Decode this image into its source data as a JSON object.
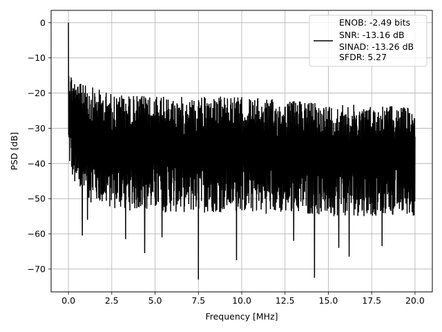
{
  "chart_data": {
    "type": "line",
    "title": "",
    "xlabel": "Frequency [MHz]",
    "ylabel": "PSD [dB]",
    "xlim": [
      -1.0,
      21.0
    ],
    "ylim": [
      -76.5,
      3.5
    ],
    "xticks": [
      0.0,
      2.5,
      5.0,
      7.5,
      10.0,
      12.5,
      15.0,
      17.5,
      20.0
    ],
    "xtick_labels": [
      "0.0",
      "2.5",
      "5.0",
      "7.5",
      "10.0",
      "12.5",
      "15.0",
      "17.5",
      "20.0"
    ],
    "yticks": [
      0,
      -10,
      -20,
      -30,
      -40,
      -50,
      -60,
      -70
    ],
    "ytick_labels": [
      "0",
      "−10",
      "−20",
      "−30",
      "−40",
      "−50",
      "−60",
      "−70"
    ],
    "grid": true,
    "legend_position": "top-right",
    "series": [
      {
        "name": "",
        "color": "#000000",
        "peak": {
          "x": 0.0,
          "y": 0.0
        },
        "noise_ceiling": {
          "x": [
            0.0,
            0.5,
            2.5,
            5.0,
            10.0,
            15.0,
            20.0
          ],
          "y": [
            -12,
            -17,
            -20,
            -21,
            -21,
            -23,
            -24
          ]
        },
        "noise_floor": {
          "x": [
            0.0,
            0.5,
            2.5,
            5.0,
            10.0,
            15.0,
            20.0
          ],
          "y": [
            -40,
            -50,
            -53,
            -54,
            -54,
            -55,
            -55
          ]
        },
        "deep_notches": [
          {
            "x": 0.8,
            "y": -60.5
          },
          {
            "x": 1.1,
            "y": -56.0
          },
          {
            "x": 3.3,
            "y": -61.5
          },
          {
            "x": 4.4,
            "y": -65.5
          },
          {
            "x": 5.4,
            "y": -61.0
          },
          {
            "x": 7.5,
            "y": -73.0
          },
          {
            "x": 9.7,
            "y": -67.5
          },
          {
            "x": 13.0,
            "y": -62.0
          },
          {
            "x": 14.2,
            "y": -72.5
          },
          {
            "x": 15.6,
            "y": -64.0
          },
          {
            "x": 16.2,
            "y": -66.5
          },
          {
            "x": 18.1,
            "y": -63.5
          }
        ]
      }
    ],
    "legend_lines": [
      "ENOB: -2.49 bits",
      "SNR: -13.16 dB",
      "SINAD: -13.26 dB",
      "SFDR: 5.27"
    ]
  }
}
